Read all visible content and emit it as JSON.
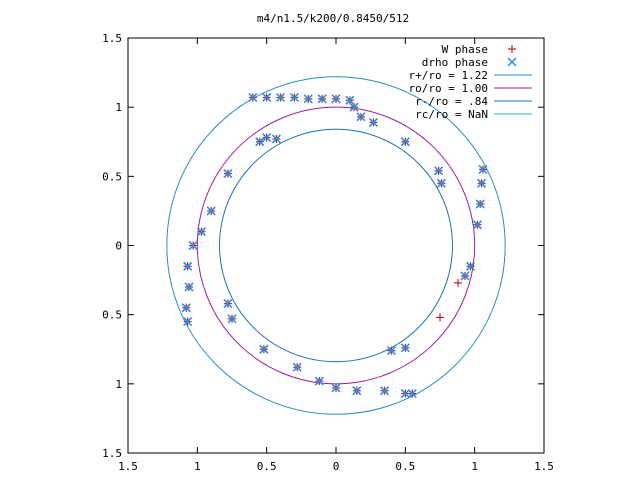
{
  "chart_data": {
    "type": "scatter",
    "title": "m4/n1.5/k200/0.8450/512",
    "xlabel": "",
    "ylabel": "",
    "xlim": [
      -1.5,
      1.5
    ],
    "ylim": [
      -1.5,
      1.5
    ],
    "xticks": [
      -1.5,
      -1,
      -0.5,
      0,
      0.5,
      1,
      1.5
    ],
    "xtick_labels": [
      "1.5",
      "1",
      "0.5",
      "0",
      "0.5",
      "1",
      "1.5"
    ],
    "yticks": [
      1.5,
      1,
      0.5,
      0,
      -0.5,
      -1,
      -1.5
    ],
    "ytick_labels": [
      "1.5",
      "1",
      "0.5",
      "0",
      "0.5",
      "1",
      "1.5"
    ],
    "grid": false,
    "legend_position": "top-right",
    "colors": {
      "w_phase": "#c0202a",
      "drho_phase": "#2a8fdf",
      "r_plus": "#2a8bc4",
      "r_o": "#a01aa0",
      "r_minus": "#1f6fbf",
      "r_c": "#1cb4d4"
    },
    "circles": [
      {
        "name": "r+/ro = 1.22",
        "r": 1.22
      },
      {
        "name": "ro/ro = 1.00",
        "r": 1.0
      },
      {
        "name": "r-/ro = .84",
        "r": 0.84
      },
      {
        "name": "rc/ro = NaN",
        "r": null
      }
    ],
    "series": [
      {
        "name": "W phase",
        "marker": "plus",
        "points": [
          [
            -0.6,
            1.07
          ],
          [
            -0.5,
            1.07
          ],
          [
            -0.4,
            1.07
          ],
          [
            -0.3,
            1.07
          ],
          [
            -0.2,
            1.06
          ],
          [
            -0.1,
            1.06
          ],
          [
            0.0,
            1.06
          ],
          [
            0.1,
            1.05
          ],
          [
            0.13,
            1.0
          ],
          [
            0.18,
            0.93
          ],
          [
            0.27,
            0.89
          ],
          [
            0.5,
            0.75
          ],
          [
            -0.55,
            0.75
          ],
          [
            -0.5,
            0.78
          ],
          [
            -0.43,
            0.77
          ],
          [
            -0.78,
            0.52
          ],
          [
            -0.9,
            0.25
          ],
          [
            0.74,
            0.54
          ],
          [
            0.76,
            0.45
          ],
          [
            1.06,
            0.55
          ],
          [
            1.05,
            0.45
          ],
          [
            1.04,
            0.3
          ],
          [
            1.02,
            0.15
          ],
          [
            0.97,
            -0.15
          ],
          [
            0.93,
            -0.22
          ],
          [
            0.88,
            -0.27
          ],
          [
            -0.97,
            0.1
          ],
          [
            -1.03,
            0.0
          ],
          [
            -1.07,
            -0.15
          ],
          [
            -1.06,
            -0.3
          ],
          [
            -1.08,
            -0.45
          ],
          [
            -1.07,
            -0.55
          ],
          [
            -0.78,
            -0.42
          ],
          [
            -0.75,
            -0.53
          ],
          [
            -0.52,
            -0.75
          ],
          [
            -0.28,
            -0.88
          ],
          [
            -0.12,
            -0.98
          ],
          [
            0.0,
            -1.03
          ],
          [
            0.15,
            -1.05
          ],
          [
            0.35,
            -1.05
          ],
          [
            0.5,
            -1.07
          ],
          [
            0.55,
            -1.07
          ],
          [
            0.4,
            -0.76
          ],
          [
            0.5,
            -0.74
          ],
          [
            0.75,
            -0.52
          ]
        ]
      },
      {
        "name": "drho phase",
        "marker": "x",
        "points": [
          [
            -0.6,
            1.07
          ],
          [
            -0.5,
            1.07
          ],
          [
            -0.4,
            1.07
          ],
          [
            -0.3,
            1.07
          ],
          [
            -0.2,
            1.06
          ],
          [
            -0.1,
            1.06
          ],
          [
            0.0,
            1.06
          ],
          [
            0.1,
            1.05
          ],
          [
            0.13,
            1.0
          ],
          [
            0.18,
            0.93
          ],
          [
            0.27,
            0.89
          ],
          [
            0.5,
            0.75
          ],
          [
            -0.55,
            0.75
          ],
          [
            -0.5,
            0.78
          ],
          [
            -0.43,
            0.77
          ],
          [
            -0.78,
            0.52
          ],
          [
            -0.9,
            0.25
          ],
          [
            0.74,
            0.54
          ],
          [
            0.76,
            0.45
          ],
          [
            1.06,
            0.55
          ],
          [
            1.05,
            0.45
          ],
          [
            1.04,
            0.3
          ],
          [
            1.02,
            0.15
          ],
          [
            0.97,
            -0.15
          ],
          [
            0.93,
            -0.22
          ],
          [
            -0.97,
            0.1
          ],
          [
            -1.03,
            0.0
          ],
          [
            -1.07,
            -0.15
          ],
          [
            -1.06,
            -0.3
          ],
          [
            -1.08,
            -0.45
          ],
          [
            -1.07,
            -0.55
          ],
          [
            -0.78,
            -0.42
          ],
          [
            -0.75,
            -0.53
          ],
          [
            -0.52,
            -0.75
          ],
          [
            -0.28,
            -0.88
          ],
          [
            -0.12,
            -0.98
          ],
          [
            0.0,
            -1.03
          ],
          [
            0.15,
            -1.05
          ],
          [
            0.35,
            -1.05
          ],
          [
            0.5,
            -1.07
          ],
          [
            0.55,
            -1.07
          ],
          [
            0.4,
            -0.76
          ],
          [
            0.5,
            -0.74
          ]
        ]
      }
    ]
  }
}
